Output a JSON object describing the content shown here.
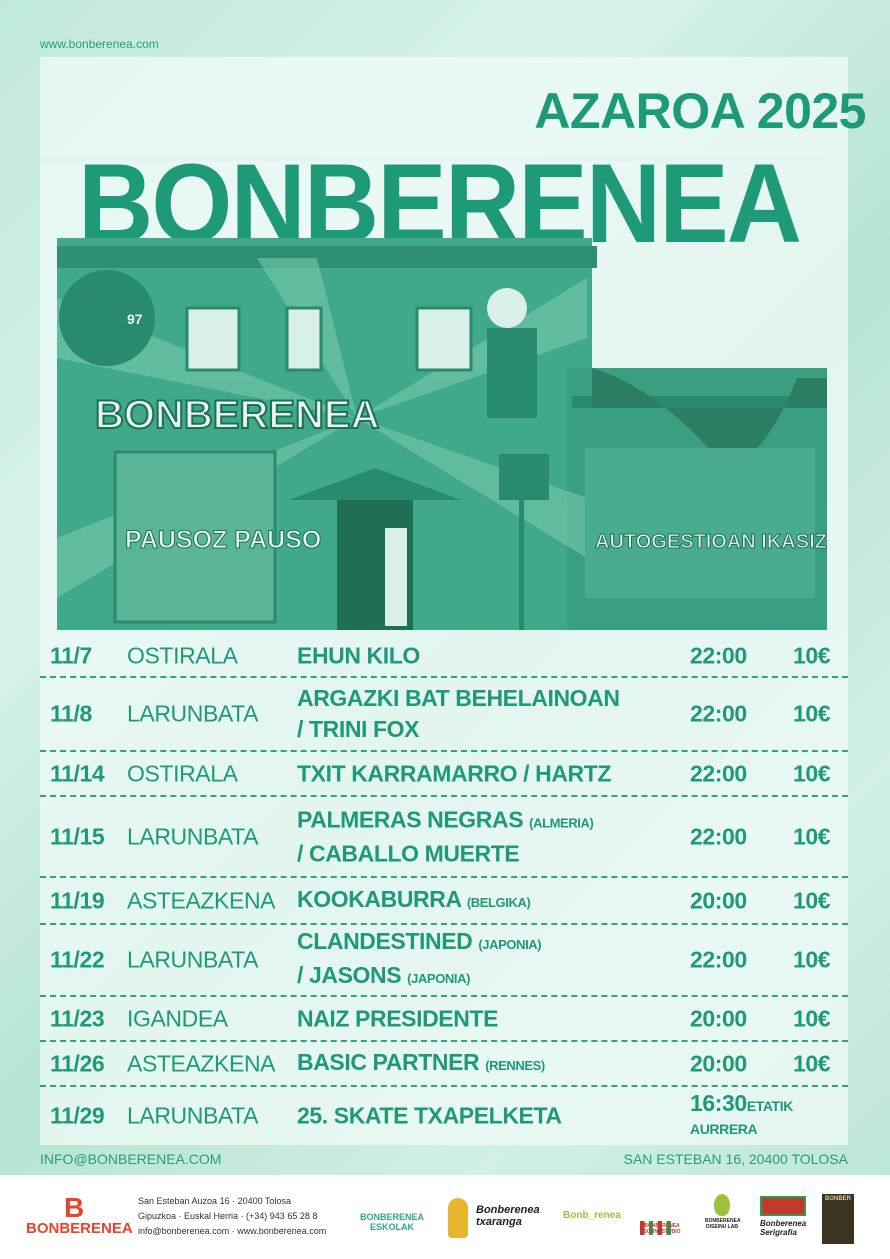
{
  "header": {
    "url": "www.bonberenea.com",
    "month": "AZAROA 2025",
    "title": "BONBERENEA"
  },
  "photo": {
    "mural_text": "BONBERENEA",
    "shutter_left": "PAUSOZ PAUSO",
    "shutter_right": "AUTOGESTIOAN IKASIZ",
    "number": "97"
  },
  "events": [
    {
      "date": "11/7",
      "day": "OSTIRALA",
      "lines": [
        [
          "EHUN KILO",
          ""
        ]
      ],
      "time": "22:00",
      "price": "10€"
    },
    {
      "date": "11/8",
      "day": "LARUNBATA",
      "lines": [
        [
          "ARGAZKI BAT BEHELAINOAN",
          ""
        ],
        [
          "/ TRINI FOX",
          ""
        ]
      ],
      "time": "22:00",
      "price": "10€"
    },
    {
      "date": "11/14",
      "day": "OSTIRALA",
      "lines": [
        [
          "TXIT KARRAMARRO / HARTZ",
          ""
        ]
      ],
      "time": "22:00",
      "price": "10€"
    },
    {
      "date": "11/15",
      "day": "LARUNBATA",
      "lines": [
        [
          "PALMERAS NEGRAS",
          "(ALMERIA)"
        ],
        [
          "/ CABALLO MUERTE",
          ""
        ]
      ],
      "time": "22:00",
      "price": "10€"
    },
    {
      "date": "11/19",
      "day": "ASTEAZKENA",
      "lines": [
        [
          "KOOKABURRA",
          "(BELGIKA)"
        ]
      ],
      "time": "20:00",
      "price": "10€"
    },
    {
      "date": "11/22",
      "day": "LARUNBATA",
      "lines": [
        [
          "CLANDESTINED",
          "(JAPONIA)"
        ],
        [
          "/ JASONS",
          "(JAPONIA)"
        ]
      ],
      "time": "22:00",
      "price": "10€"
    },
    {
      "date": "11/23",
      "day": "IGANDEA",
      "lines": [
        [
          "NAIZ PRESIDENTE",
          ""
        ]
      ],
      "time": "20:00",
      "price": "10€"
    },
    {
      "date": "11/26",
      "day": "ASTEAZKENA",
      "lines": [
        [
          "BASIC PARTNER",
          "(RENNES)"
        ]
      ],
      "time": "20:00",
      "price": "10€"
    },
    {
      "date": "11/29",
      "day": "LARUNBATA",
      "lines": [
        [
          "25. SKATE TXAPELKETA",
          ""
        ]
      ],
      "time": "16:30",
      "time_suffix": "ETATIK",
      "time_line2": "AURRERA",
      "price": ""
    }
  ],
  "footer": {
    "email": "INFO@BONBERENEA.COM",
    "address": "SAN ESTEBAN 16, 20400 TOLOSA"
  },
  "sponsors": {
    "address_lines": [
      "San Esteban Auzoa 16 · 20400 Tolosa",
      "Gipuzkoa · Euskal Herria · (+34) 943 65 28 8",
      "info@bonberenea.com · www.bonberenea.com"
    ],
    "logos": [
      "BONBERENEA",
      "BONBERENEA ESKOLAK",
      "Bonberenea txaranga",
      "Bonb_renea",
      "BONBERENEA SOUNDSTUDIO",
      "BONBERENEA DISEINU LAB",
      "Bonberenea Serigrafia",
      "BONBER"
    ]
  },
  "colors": {
    "accent": "#1f9a78",
    "background": "#c8ede0",
    "logo_red": "#e8432e"
  }
}
